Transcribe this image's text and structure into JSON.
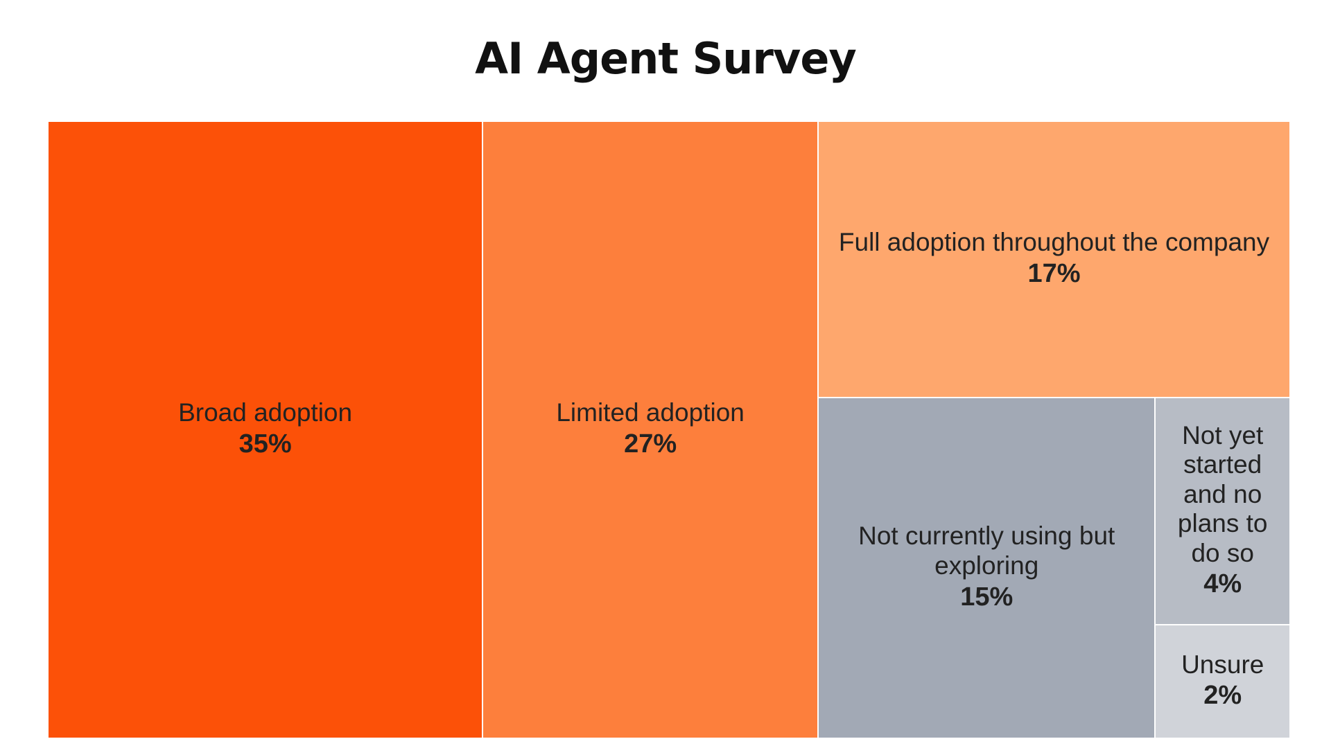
{
  "chart_data": {
    "type": "treemap",
    "title": "AI Agent Survey",
    "categories": [
      "Broad adoption",
      "Limited adoption",
      "Full adoption throughout the company",
      "Not currently using but exploring",
      "Not yet started and no plans to do so",
      "Unsure"
    ],
    "values": [
      35,
      27,
      17,
      15,
      4,
      2
    ],
    "value_labels": [
      "35%",
      "27%",
      "17%",
      "15%",
      "4%",
      "2%"
    ],
    "colors": [
      "#fc5108",
      "#fd7f3c",
      "#fea76d",
      "#a2a9b5",
      "#b7bcc5",
      "#d0d3d9"
    ]
  }
}
